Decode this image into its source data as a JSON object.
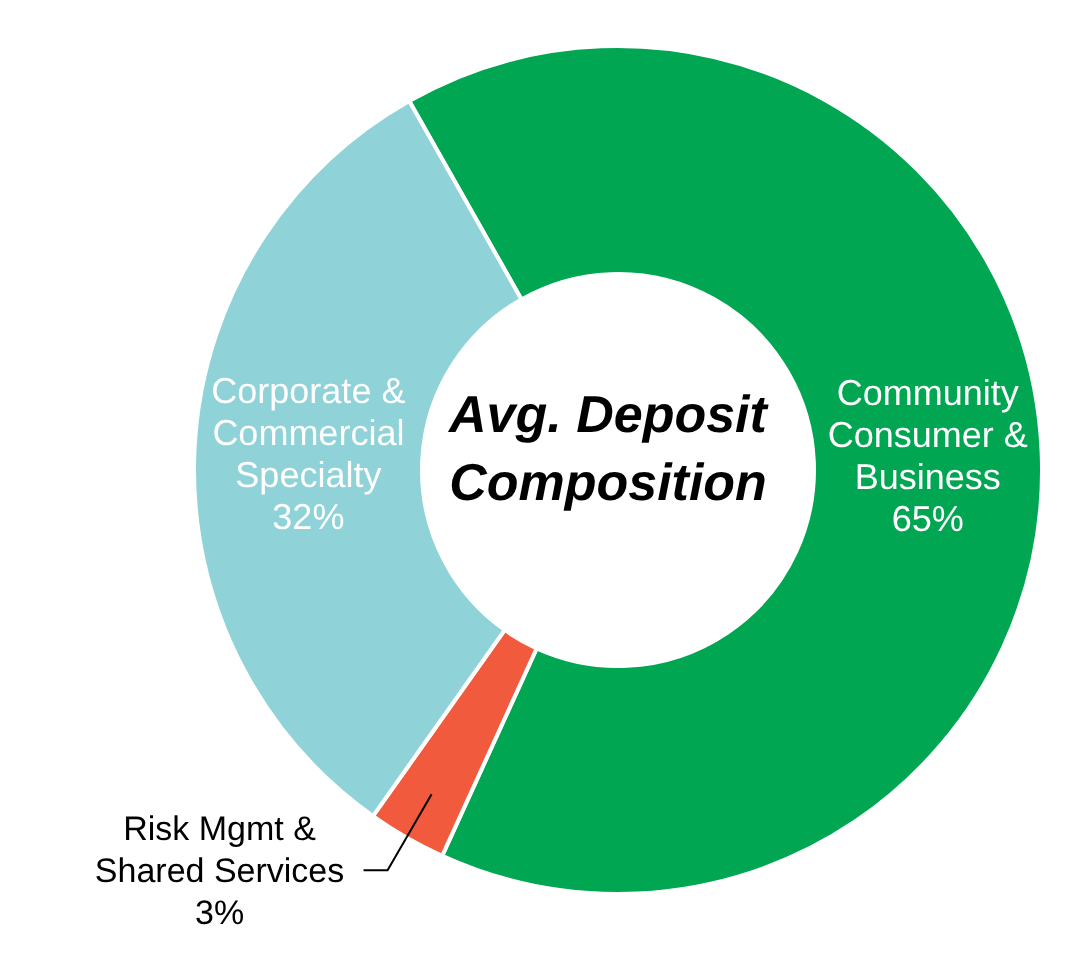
{
  "chart_data": {
    "type": "donut",
    "title": "Avg. Deposit Composition",
    "categories": [
      "Community Consumer & Business",
      "Risk Mgmt & Shared Services",
      "Corporate & Commercial Specialty"
    ],
    "values": [
      65,
      3,
      32
    ],
    "colors": [
      "#00a651",
      "#f15a3c",
      "#8fd3d8"
    ],
    "value_labels": [
      "65%",
      "3%",
      "32%"
    ],
    "legend": false
  }
}
